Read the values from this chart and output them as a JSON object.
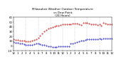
{
  "title": "Milwaukee Weather Outdoor Temperature\nvs Dew Point\n(24 Hours)",
  "title_fontsize": 3.0,
  "bg_color": "#ffffff",
  "grid_color": "#aaaaaa",
  "temp_color": "#cc0000",
  "dew_color": "#0000cc",
  "ylim": [
    -10,
    60
  ],
  "xlim": [
    0,
    24
  ],
  "ylabel_fontsize": 2.8,
  "xlabel_fontsize": 2.8,
  "yticks": [
    -10,
    0,
    10,
    20,
    30,
    40,
    50,
    60
  ],
  "xticks": [
    0,
    1,
    2,
    3,
    4,
    5,
    6,
    7,
    8,
    9,
    10,
    11,
    12,
    13,
    14,
    15,
    16,
    17,
    18,
    19,
    20,
    21,
    22,
    23,
    24
  ],
  "vlines": [
    3,
    6,
    9,
    12,
    15,
    18,
    21
  ],
  "temp_x": [
    0,
    0.5,
    1,
    1.5,
    2,
    2.5,
    3,
    3.5,
    4,
    4.5,
    5,
    5.5,
    6,
    6.5,
    7,
    7.5,
    8,
    8.5,
    9,
    9.5,
    10,
    10.5,
    11,
    11.5,
    12,
    12.5,
    13,
    13.5,
    14,
    14.5,
    15,
    15.5,
    16,
    16.5,
    17,
    17.5,
    18,
    18.5,
    19,
    19.5,
    20,
    20.5,
    21,
    21.5,
    22,
    22.5,
    23,
    23.5,
    24
  ],
  "temp_y": [
    14,
    13,
    13,
    12,
    11,
    11,
    10,
    10,
    10,
    11,
    13,
    15,
    17,
    22,
    27,
    30,
    33,
    36,
    38,
    40,
    41,
    42,
    43,
    44,
    45,
    46,
    46,
    46,
    46,
    47,
    47,
    47,
    45,
    44,
    48,
    49,
    48,
    47,
    46,
    45,
    45,
    44,
    45,
    42,
    48,
    47,
    46,
    46,
    45
  ],
  "dew_x": [
    0,
    0.5,
    1,
    1.5,
    2,
    2.5,
    3,
    3.5,
    4,
    4.5,
    5,
    5.5,
    6,
    6.5,
    7,
    7.5,
    8,
    8.5,
    9,
    9.5,
    10,
    10.5,
    11,
    11.5,
    12,
    12.5,
    13,
    13.5,
    14,
    14.5,
    15,
    15.5,
    16,
    16.5,
    17,
    17.5,
    18,
    18.5,
    19,
    19.5,
    20,
    20.5,
    21,
    21.5,
    22,
    22.5,
    23,
    23.5,
    24
  ],
  "dew_y": [
    8,
    7,
    7,
    6,
    5,
    4,
    3,
    2,
    2,
    3,
    4,
    5,
    5,
    4,
    3,
    2,
    1,
    0,
    -1,
    -2,
    -2,
    -2,
    -1,
    0,
    0,
    0,
    0,
    0,
    5,
    6,
    7,
    9,
    10,
    11,
    12,
    13,
    14,
    15,
    15,
    15,
    15,
    15,
    16,
    15,
    16,
    16,
    16,
    16,
    16
  ],
  "marker_size": 0.8,
  "spine_lw": 0.3,
  "vline_lw": 0.3
}
